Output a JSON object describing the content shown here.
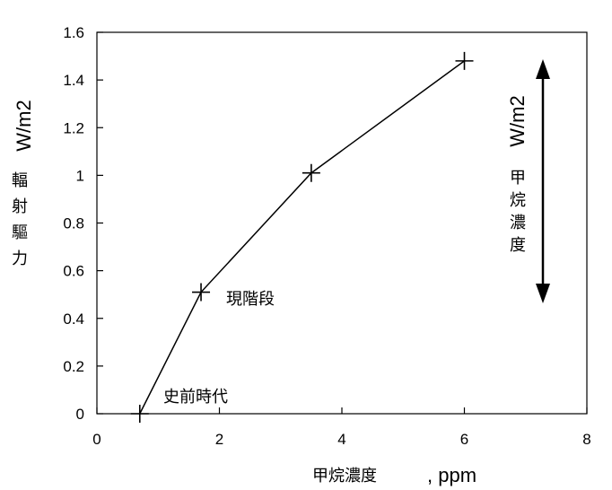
{
  "chart_data": {
    "type": "line",
    "xlabel": "甲烷濃度",
    "xlabel_suffix": ", ppm",
    "ylabel_unit": "W/m2",
    "ylabel": "輻射驅力",
    "xlim": [
      0,
      8
    ],
    "ylim": [
      0,
      1.6
    ],
    "xticks": [
      "0",
      "2",
      "4",
      "6",
      "8"
    ],
    "yticks": [
      "0",
      "0.2",
      "0.4",
      "0.6",
      "0.8",
      "1",
      "1.2",
      "1.4",
      "1.6"
    ],
    "series": [
      {
        "x": [
          0.7,
          1.7,
          3.5,
          6.0
        ],
        "y": [
          0.0,
          0.51,
          1.01,
          1.48
        ]
      }
    ],
    "annotations": [
      "現階段",
      "史前時代"
    ],
    "side_arrow": {
      "unit": "W/m2",
      "label": "甲烷濃度"
    },
    "grid": false,
    "marker": "plus",
    "color": "#000000"
  }
}
